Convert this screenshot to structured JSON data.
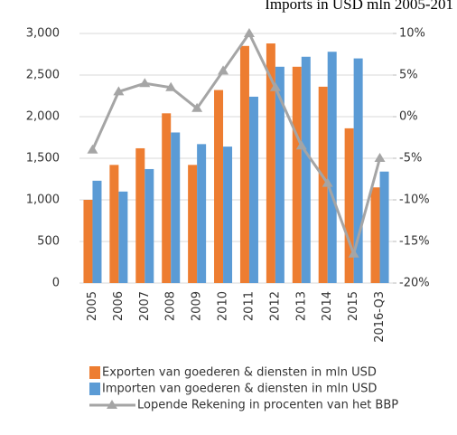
{
  "chart_data": {
    "type": "bar",
    "title": "Imports in USD mln 2005-201",
    "categories": [
      "2005",
      "2006",
      "2007",
      "2008",
      "2009",
      "2010",
      "2011",
      "2012",
      "2013",
      "2014",
      "2015",
      "2016-Q3"
    ],
    "series": [
      {
        "name": "Exporten van goederen & diensten in mln USD",
        "color": "#ed7d31",
        "type": "bar",
        "values": [
          1000,
          1420,
          1620,
          2040,
          1420,
          2320,
          2850,
          2880,
          2600,
          2360,
          1860,
          1150
        ]
      },
      {
        "name": "Importen van goederen & diensten in mln USD",
        "color": "#5b9bd5",
        "type": "bar",
        "values": [
          1230,
          1100,
          1370,
          1810,
          1670,
          1640,
          2240,
          2600,
          2720,
          2780,
          2700,
          1340
        ]
      },
      {
        "name": "Lopende Rekening in procenten van het BBP",
        "color": "#a5a5a5",
        "type": "line",
        "axis": "y2",
        "values": [
          -4,
          3,
          4,
          3.5,
          1,
          5.5,
          10,
          3.5,
          -3.5,
          -8,
          -16.5,
          -5
        ]
      }
    ],
    "ylim": [
      0,
      3000
    ],
    "yticks": [
      0,
      500,
      {
        "value": 1000,
        "label": "1,000"
      },
      {
        "value": 1500,
        "label": "1,500"
      },
      {
        "value": 2000,
        "label": "2,000"
      },
      {
        "value": 2500,
        "label": "2,500"
      },
      {
        "value": 3000,
        "label": "3,000"
      }
    ],
    "y2lim": [
      -20,
      10
    ],
    "y2ticks": [
      {
        "value": -20,
        "label": "-20%"
      },
      {
        "value": -15,
        "label": "-15%"
      },
      {
        "value": -10,
        "label": "-10%"
      },
      {
        "value": -5,
        "label": "-5%"
      },
      {
        "value": 0,
        "label": "0%"
      },
      {
        "value": 5,
        "label": "5%"
      },
      {
        "value": 10,
        "label": "10%"
      }
    ],
    "grid": true
  }
}
